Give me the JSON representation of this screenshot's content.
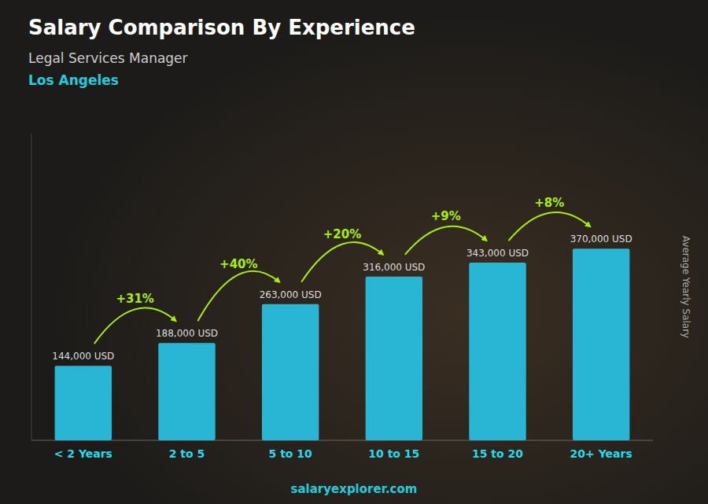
{
  "chart_data": {
    "type": "bar",
    "title": "Salary Comparison By Experience",
    "subtitle": "Legal Services Manager",
    "annotations": [
      "Los Angeles",
      "salaryexplorer.com"
    ],
    "y_label": "Average Yearly Salary",
    "categories": [
      "< 2 Years",
      "2 to 5",
      "5 to 10",
      "10 to 15",
      "15 to 20",
      "20+ Years"
    ],
    "values": [
      144000,
      188000,
      263000,
      316000,
      343000,
      370000
    ],
    "value_labels": [
      "144,000 USD",
      "188,000 USD",
      "263,000 USD",
      "316,000 USD",
      "343,000 USD",
      "370,000 USD"
    ],
    "change_labels": [
      null,
      "+31%",
      "+40%",
      "+20%",
      "+9%",
      "+8%"
    ],
    "color": "#29b6d4",
    "ylim": [
      0,
      592000
    ],
    "data_labels": true,
    "tick_labels": "x"
  }
}
